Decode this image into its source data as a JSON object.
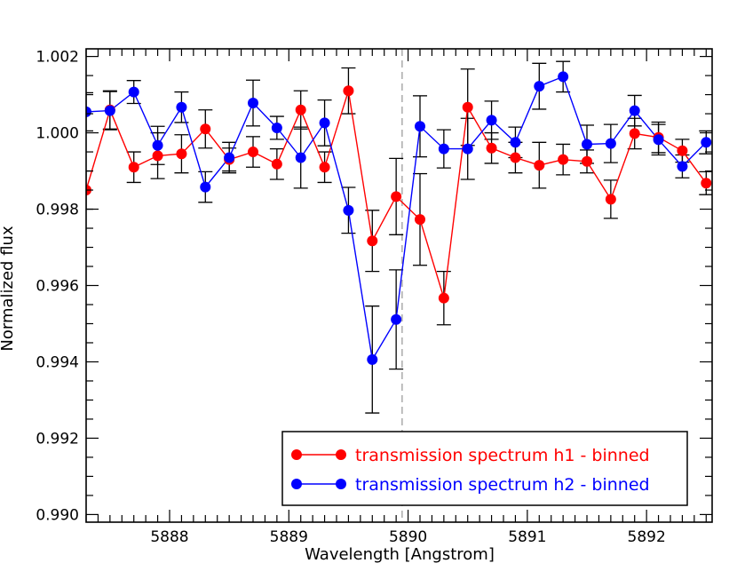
{
  "chart_data": {
    "type": "scatter",
    "title": "",
    "xlabel": "Wavelength [Angstrom]",
    "ylabel": "Normalized flux",
    "xlim": [
      5887.3,
      5892.55
    ],
    "ylim": [
      0.9898,
      1.0022
    ],
    "xticks": [
      5888,
      5889,
      5890,
      5891,
      5892
    ],
    "xtick_labels": [
      "5888",
      "5889",
      "5890",
      "5891",
      "5892"
    ],
    "yticks": [
      0.99,
      0.992,
      0.994,
      0.996,
      0.998,
      1.0,
      1.002
    ],
    "ytick_labels": [
      "0.990",
      "0.992",
      "0.994",
      "0.996",
      "0.998",
      "1.000",
      "1.002"
    ],
    "vline_x": 5889.95,
    "legend_position": "bottom-right",
    "series": [
      {
        "name": "transmission spectrum h1 - binned",
        "color": "#ff0000",
        "x": [
          5887.3,
          5887.5,
          5887.7,
          5887.9,
          5888.1,
          5888.3,
          5888.5,
          5888.7,
          5888.9,
          5889.1,
          5889.3,
          5889.5,
          5889.7,
          5889.9,
          5890.1,
          5890.3,
          5890.5,
          5890.7,
          5890.9,
          5891.1,
          5891.3,
          5891.5,
          5891.7,
          5891.9,
          5892.1,
          5892.3,
          5892.5
        ],
        "y": [
          0.9985,
          1.0006,
          0.9991,
          0.9994,
          0.99945,
          1.0001,
          0.9993,
          0.9995,
          0.99918,
          1.0006,
          0.9991,
          1.0011,
          0.99717,
          0.99833,
          0.99773,
          0.99567,
          1.00067,
          0.9996,
          0.99935,
          0.99915,
          0.9993,
          0.99925,
          0.99826,
          0.99998,
          0.99988,
          0.99953,
          0.99868
        ],
        "err": [
          0.0005,
          0.0005,
          0.0004,
          0.0006,
          0.0005,
          0.0005,
          0.0003,
          0.0004,
          0.0004,
          0.0005,
          0.0004,
          0.0006,
          0.0008,
          0.001,
          0.0012,
          0.0007,
          0.001,
          0.0004,
          0.0004,
          0.0006,
          0.0004,
          0.0003,
          0.0005,
          0.0004,
          0.0004,
          0.0003,
          0.0003
        ]
      },
      {
        "name": "transmission spectrum h2 - binned",
        "color": "#0000ff",
        "x": [
          5887.3,
          5887.5,
          5887.7,
          5887.9,
          5888.1,
          5888.3,
          5888.5,
          5888.7,
          5888.9,
          5889.1,
          5889.3,
          5889.5,
          5889.7,
          5889.9,
          5890.1,
          5890.3,
          5890.5,
          5890.7,
          5890.9,
          5891.1,
          5891.3,
          5891.5,
          5891.7,
          5891.9,
          5892.1,
          5892.3,
          5892.5
        ],
        "y": [
          1.00055,
          1.00058,
          1.00107,
          0.99967,
          1.00067,
          0.99858,
          0.99935,
          1.00078,
          1.00013,
          0.99935,
          1.00026,
          0.99797,
          0.99406,
          0.99511,
          1.00017,
          0.99958,
          0.99958,
          1.00033,
          0.99975,
          1.00122,
          1.00147,
          0.9997,
          0.99972,
          1.00058,
          0.99982,
          0.99912,
          0.99975
        ],
        "err": [
          0.0005,
          0.0005,
          0.0003,
          0.0005,
          0.0004,
          0.0004,
          0.0004,
          0.0006,
          0.0003,
          0.0008,
          0.0006,
          0.0006,
          0.0014,
          0.0013,
          0.0008,
          0.0005,
          0.0008,
          0.0005,
          0.0004,
          0.0006,
          0.0004,
          0.0005,
          0.0005,
          0.0004,
          0.0004,
          0.0003,
          0.0003
        ]
      }
    ]
  }
}
